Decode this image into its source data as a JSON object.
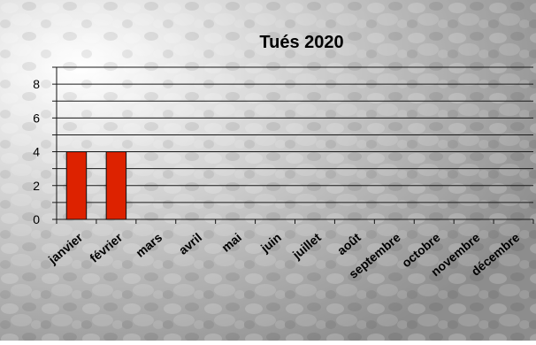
{
  "chart_data": {
    "type": "bar",
    "title": "Tués 2020",
    "xlabel": "",
    "ylabel": "",
    "categories": [
      "janvier",
      "février",
      "mars",
      "avril",
      "mai",
      "juin",
      "juillet",
      "août",
      "septembre",
      "octobre",
      "novembre",
      "décembre"
    ],
    "values": [
      4,
      4,
      0,
      0,
      0,
      0,
      0,
      0,
      0,
      0,
      0,
      0
    ],
    "ylim": [
      0,
      9
    ],
    "yticks": [
      0,
      2,
      4,
      6,
      8
    ],
    "grid": true,
    "legend": "none",
    "colors": {
      "bar_fill": "#dd2200",
      "bar_stroke": "#111111",
      "gridline": "#1a1a1a",
      "axis": "#111111",
      "text": "#000000",
      "background_light": "#f4f4f4",
      "background_dark": "#8a8a8a"
    }
  }
}
